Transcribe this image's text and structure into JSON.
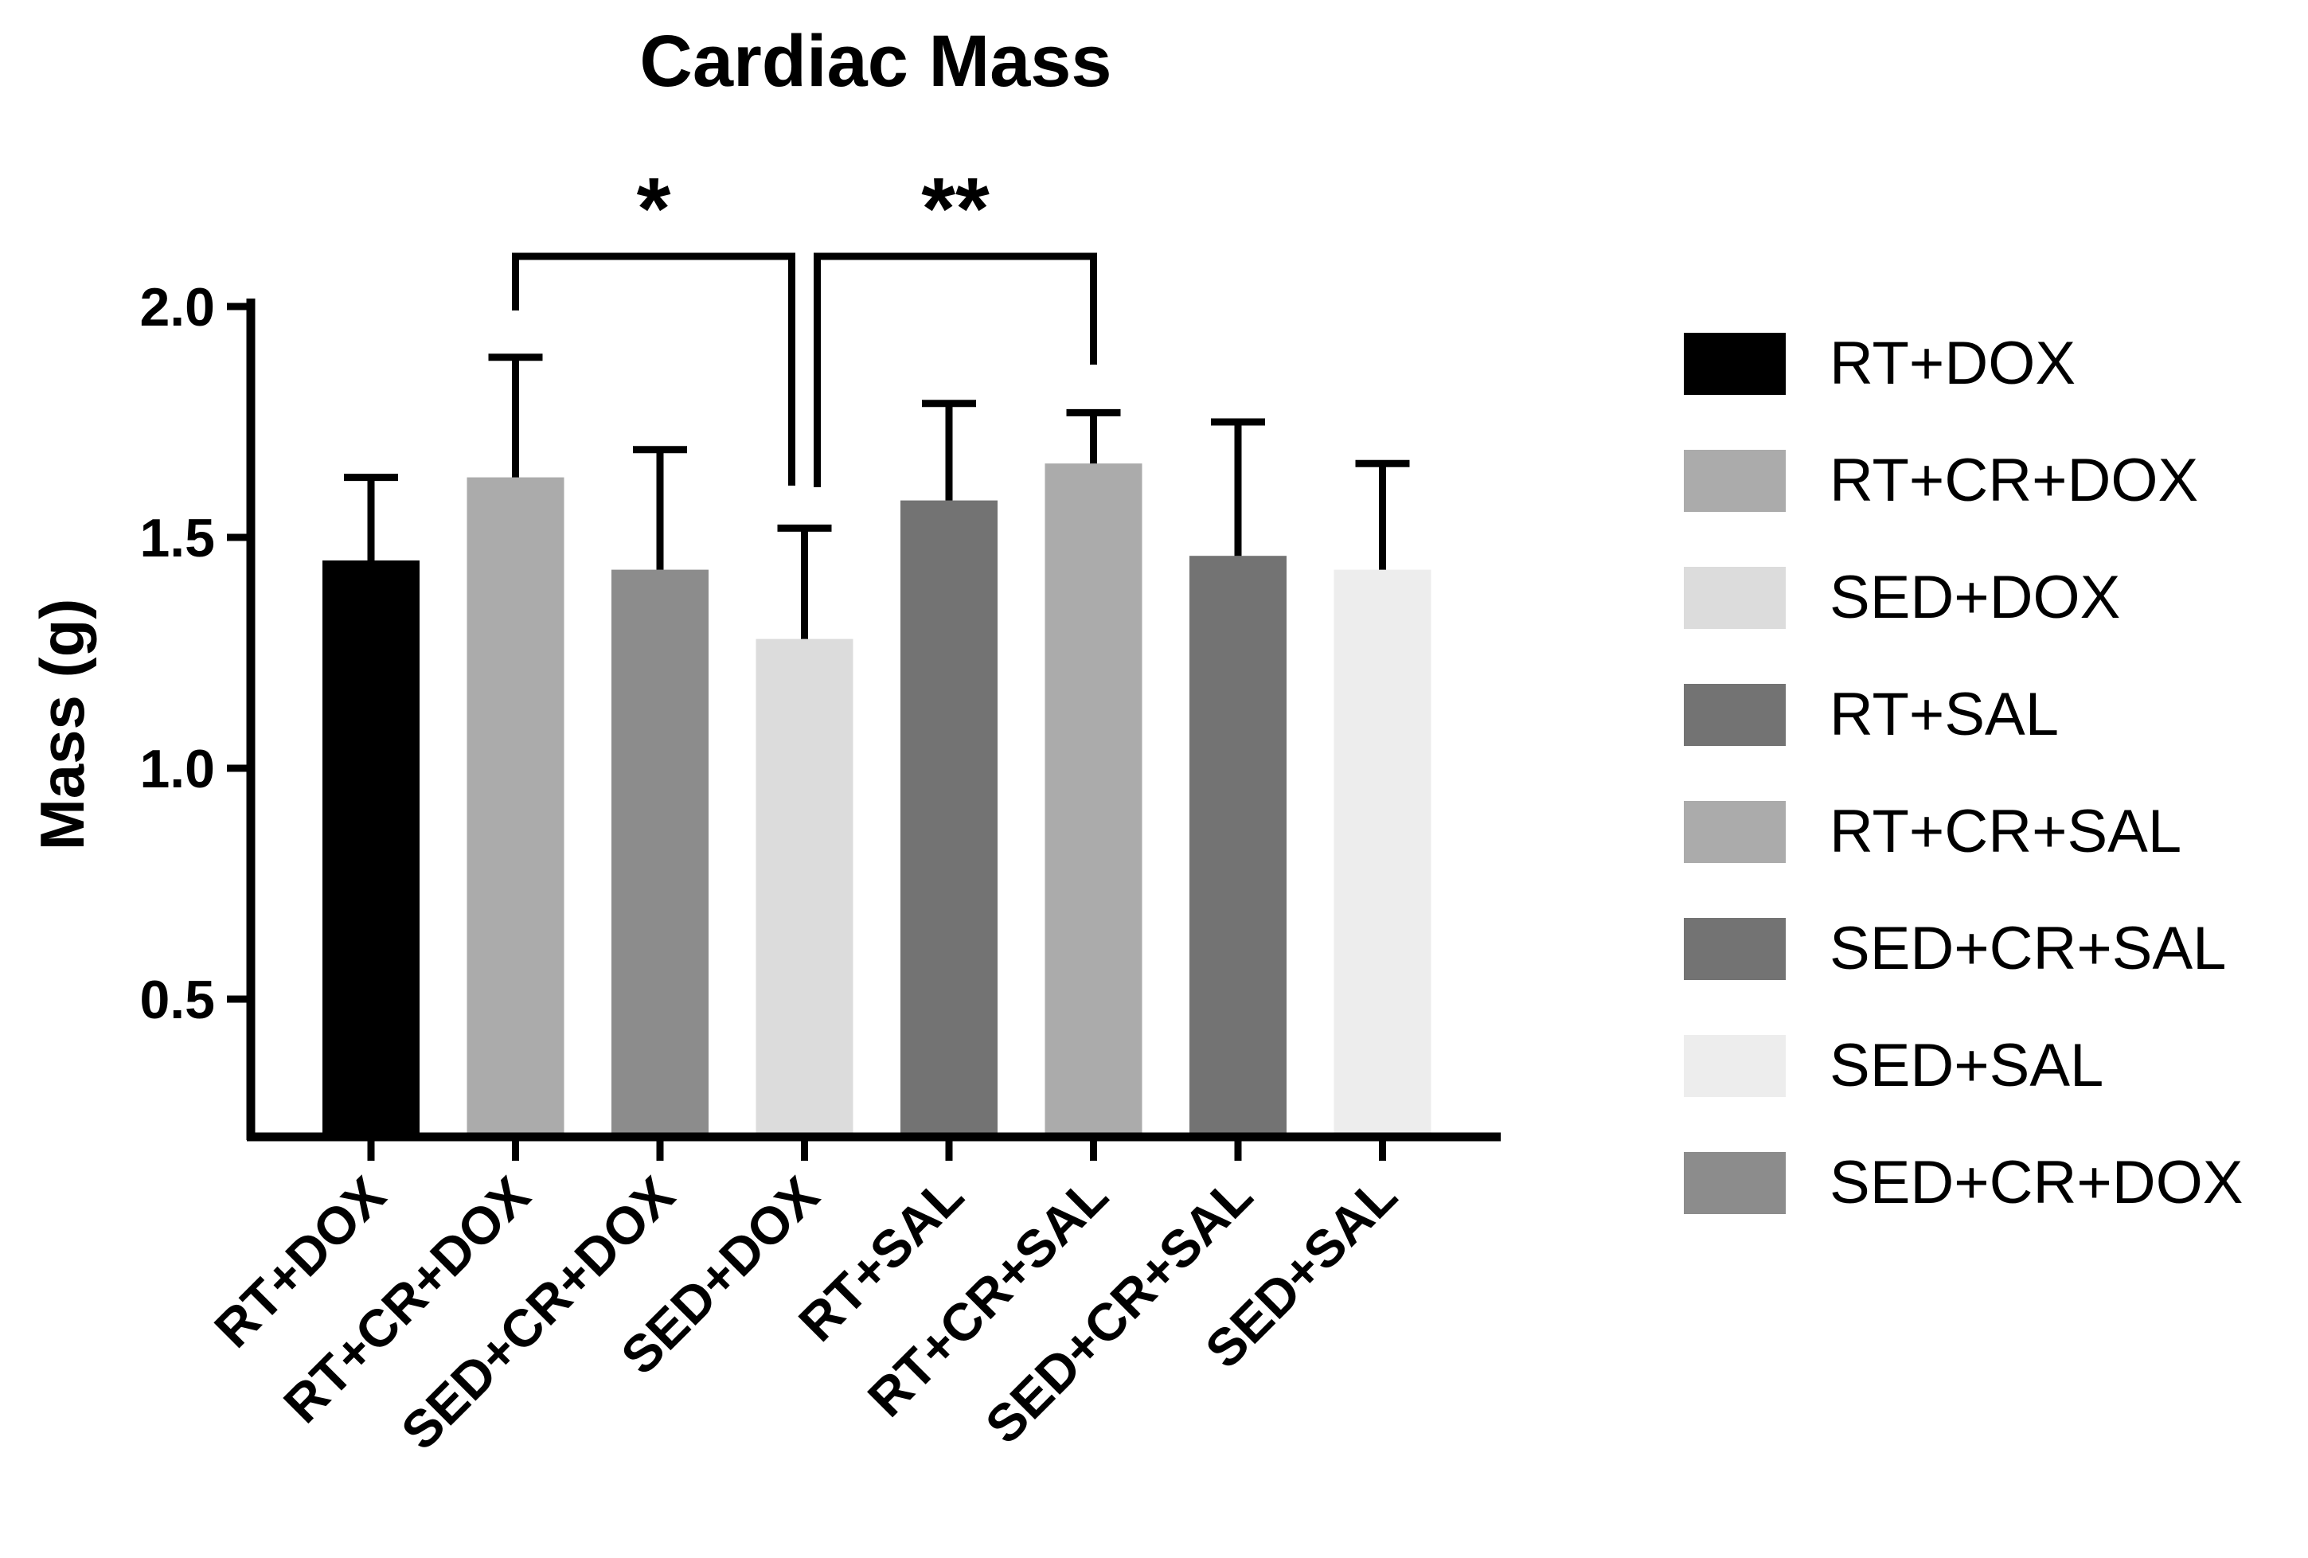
{
  "chart_data": {
    "type": "bar",
    "title": "Cardiac Mass",
    "xlabel": "",
    "ylabel": "Mass (g)",
    "ylim": [
      0.2,
      2.0
    ],
    "yticks": [
      0.5,
      1.0,
      1.5,
      2.0
    ],
    "ytick_labels": [
      "0.5",
      "1.0",
      "1.5",
      "2.0"
    ],
    "categories": [
      "RT+DOX",
      "RT+CR+DOX",
      "SED+CR+DOX",
      "SED+DOX",
      "RT+SAL",
      "RT+CR+SAL",
      "SED+CR+SAL",
      "SED+SAL"
    ],
    "values": [
      1.45,
      1.63,
      1.43,
      1.28,
      1.58,
      1.66,
      1.46,
      1.43
    ],
    "errors": [
      0.18,
      0.26,
      0.26,
      0.24,
      0.21,
      0.11,
      0.29,
      0.23
    ],
    "colors": [
      "#000000",
      "#ababab",
      "#8c8c8c",
      "#dcdcdc",
      "#737373",
      "#ababab",
      "#737373",
      "#ededed"
    ],
    "legend": {
      "placement": "right",
      "entries": [
        {
          "label": "RT+DOX",
          "color": "#000000"
        },
        {
          "label": "RT+CR+DOX",
          "color": "#ababab"
        },
        {
          "label": "SED+DOX",
          "color": "#dcdcdc"
        },
        {
          "label": "RT+SAL",
          "color": "#737373"
        },
        {
          "label": "RT+CR+SAL",
          "color": "#ababab"
        },
        {
          "label": "SED+CR+SAL",
          "color": "#737373"
        },
        {
          "label": "SED+SAL",
          "color": "#ededed"
        },
        {
          "label": "SED+CR+DOX",
          "color": "#8c8c8c"
        }
      ]
    },
    "significance": [
      {
        "from": "RT+CR+DOX",
        "to": "SED+DOX",
        "label": "*"
      },
      {
        "from": "SED+DOX",
        "to": "RT+CR+SAL",
        "label": "**"
      }
    ],
    "grid": false
  }
}
